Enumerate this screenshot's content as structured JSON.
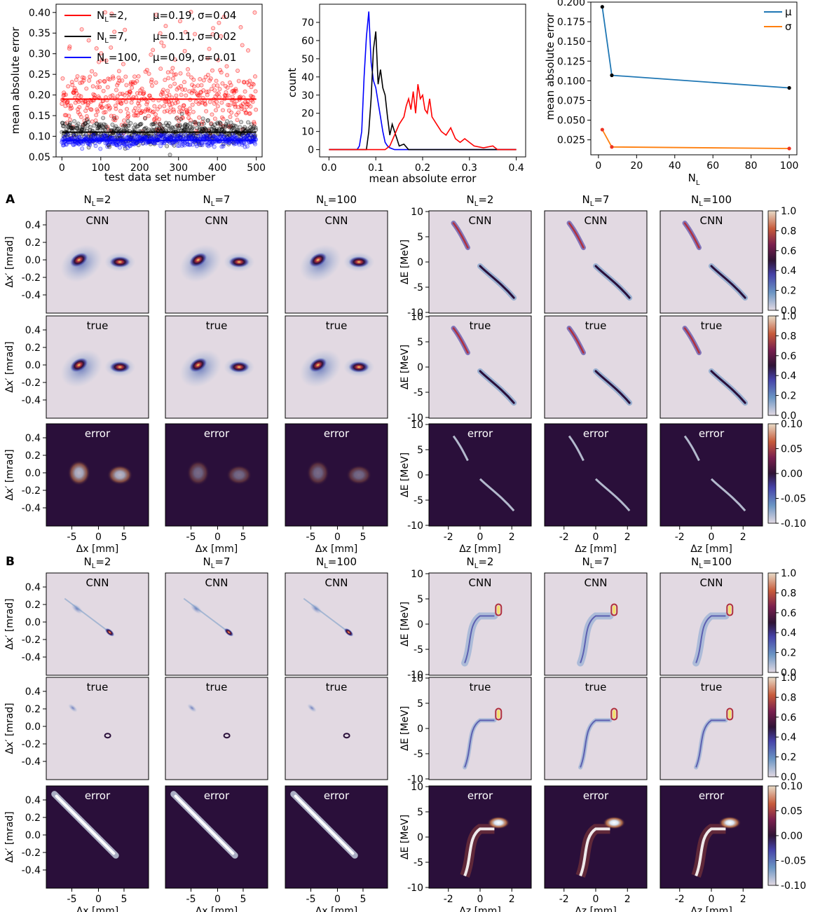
{
  "chart_data": [
    {
      "type": "scatter",
      "xlabel": "test data set number",
      "ylabel": "mean absolute error",
      "xlim": [
        -15,
        515
      ],
      "ylim": [
        0.05,
        0.42
      ],
      "xticks": [
        0,
        100,
        200,
        300,
        400,
        500
      ],
      "yticks": [
        0.05,
        0.1,
        0.15,
        0.2,
        0.25,
        0.3,
        0.35,
        0.4
      ],
      "legend_position": "top-left",
      "grid": false,
      "series": [
        {
          "name": "N_L=2, μ=0.19, σ=0.04",
          "color": "#ff0000",
          "mean": 0.19,
          "std": 0.04
        },
        {
          "name": "N_L=7, μ=0.11, σ=0.02",
          "color": "#000000",
          "mean": 0.11,
          "std": 0.02
        },
        {
          "name": "N_L=100, μ=0.09, σ=0.01",
          "color": "#0000ff",
          "mean": 0.09,
          "std": 0.01
        }
      ],
      "legend": [
        {
          "nl": "2",
          "mu": "μ=0.19,",
          "sigma": "σ=0.04"
        },
        {
          "nl": "7",
          "mu": "μ=0.11,",
          "sigma": "σ=0.02"
        },
        {
          "nl": "100",
          "mu": "μ=0.09,",
          "sigma": "σ=0.01"
        }
      ]
    },
    {
      "type": "line",
      "xlabel": "mean absolute error",
      "ylabel": "count",
      "xlim": [
        -0.02,
        0.42
      ],
      "ylim": [
        -4,
        80
      ],
      "xticks": [
        0.0,
        0.1,
        0.2,
        0.3,
        0.4
      ],
      "yticks": [
        0,
        10,
        20,
        30,
        40,
        50,
        60,
        70
      ],
      "grid": false,
      "series": [
        {
          "color": "#0000ff",
          "x": [
            0.0,
            0.06,
            0.065,
            0.07,
            0.075,
            0.08,
            0.085,
            0.09,
            0.095,
            0.1,
            0.105,
            0.11,
            0.115,
            0.12,
            0.125,
            0.13,
            0.14,
            0.15,
            0.16,
            0.4
          ],
          "y": [
            0,
            0,
            2,
            10,
            40,
            62,
            76,
            48,
            38,
            34,
            26,
            18,
            10,
            4,
            2,
            1,
            0,
            0,
            0,
            0
          ]
        },
        {
          "color": "#000000",
          "x": [
            0.0,
            0.07,
            0.08,
            0.085,
            0.09,
            0.095,
            0.1,
            0.105,
            0.11,
            0.115,
            0.12,
            0.125,
            0.13,
            0.135,
            0.14,
            0.145,
            0.15,
            0.16,
            0.17,
            0.4
          ],
          "y": [
            0,
            0,
            0,
            10,
            28,
            55,
            65,
            36,
            44,
            34,
            30,
            18,
            8,
            14,
            10,
            6,
            2,
            3,
            0,
            0
          ]
        },
        {
          "color": "#ff0000",
          "x": [
            0.0,
            0.12,
            0.13,
            0.14,
            0.15,
            0.16,
            0.165,
            0.17,
            0.175,
            0.18,
            0.185,
            0.19,
            0.195,
            0.2,
            0.205,
            0.21,
            0.215,
            0.22,
            0.23,
            0.24,
            0.25,
            0.26,
            0.27,
            0.28,
            0.29,
            0.3,
            0.31,
            0.33,
            0.35,
            0.36,
            0.4
          ],
          "y": [
            0,
            0,
            2,
            8,
            14,
            18,
            24,
            28,
            22,
            32,
            20,
            36,
            28,
            30,
            22,
            20,
            28,
            18,
            14,
            10,
            8,
            12,
            6,
            4,
            6,
            4,
            2,
            1,
            2,
            0,
            0
          ]
        }
      ]
    },
    {
      "type": "line",
      "xlabel": "N_L",
      "ylabel": "mean absolute error",
      "xlim": [
        -4,
        104
      ],
      "ylim": [
        0.006,
        0.2
      ],
      "xticks": [
        0,
        20,
        40,
        60,
        80,
        100
      ],
      "yticks": [
        0.025,
        0.05,
        0.075,
        0.1,
        0.125,
        0.15,
        0.175,
        0.2
      ],
      "grid": false,
      "legend_position": "top-right",
      "series": [
        {
          "name": "μ",
          "color": "#1f77b4",
          "x": [
            2,
            7,
            100
          ],
          "y": [
            0.194,
            0.107,
            0.091
          ]
        },
        {
          "name": "σ",
          "color": "#ff7f0e",
          "x": [
            2,
            7,
            100
          ],
          "y": [
            0.038,
            0.016,
            0.014
          ]
        }
      ]
    }
  ],
  "panels": {
    "sectionA": "A",
    "sectionB": "B",
    "col_labels": [
      "2",
      "7",
      "100",
      "2",
      "7",
      "100"
    ],
    "row_titles": [
      "CNN",
      "true",
      "error"
    ],
    "ylabel_x": "Δx′ [mrad]",
    "ylabel_z": "ΔE [MeV]",
    "xlabel_x": "Δx [mm]",
    "xlabel_z": "Δz [mm]",
    "xp_ticks": [
      "0.4",
      "0.2",
      "0.0",
      "-0.2",
      "-0.4"
    ],
    "de_ticks": [
      "10",
      "5",
      "0",
      "-5",
      "-10"
    ],
    "dx_ticks": [
      "-5",
      "0",
      "5"
    ],
    "dz_ticks": [
      "-2",
      "0",
      "2"
    ],
    "cbar_ticks_main": [
      "1.0",
      "0.8",
      "0.6",
      "0.4",
      "0.2",
      "0.0"
    ],
    "cbar_ticks_err": [
      "0.10",
      "0.05",
      "0.00",
      "-0.05",
      "-0.10"
    ]
  }
}
